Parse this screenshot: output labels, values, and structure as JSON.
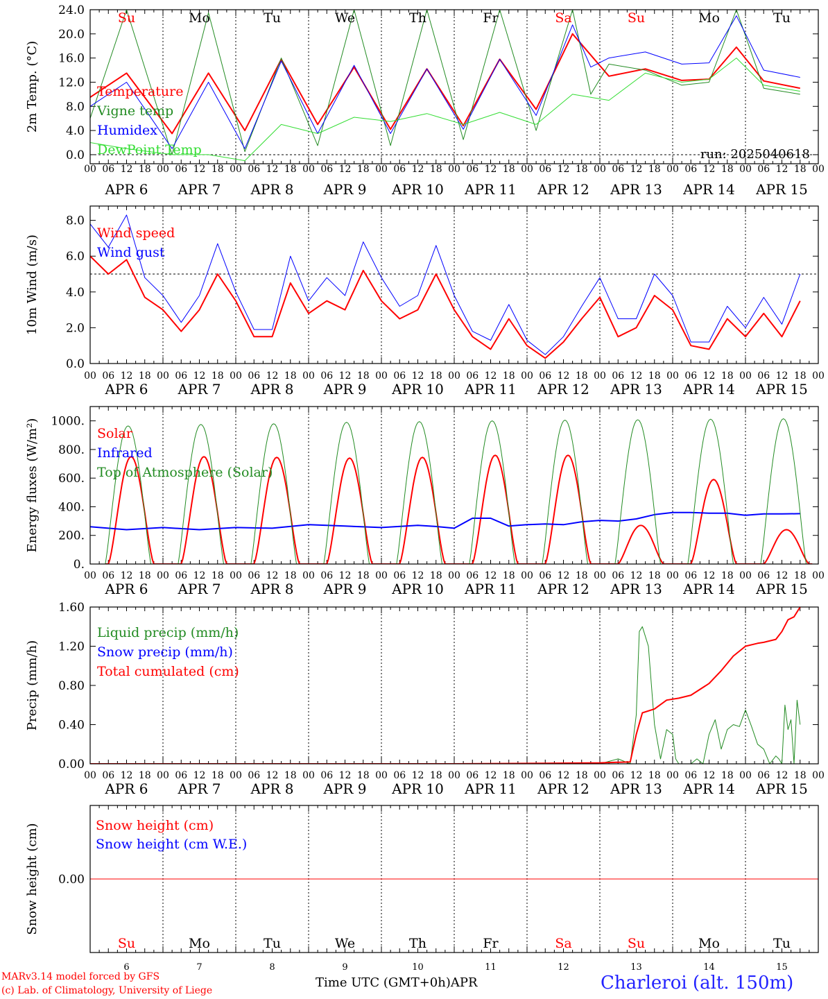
{
  "chart_data": {
    "type": "line",
    "days": [
      {
        "date": "APR 6",
        "dow": "Su",
        "weekend": true,
        "num": "6"
      },
      {
        "date": "APR 7",
        "dow": "Mo",
        "weekend": false,
        "num": "7"
      },
      {
        "date": "APR 8",
        "dow": "Tu",
        "weekend": false,
        "num": "8"
      },
      {
        "date": "APR 9",
        "dow": "We",
        "weekend": false,
        "num": "9"
      },
      {
        "date": "APR 10",
        "dow": "Th",
        "weekend": false,
        "num": "10"
      },
      {
        "date": "APR 11",
        "dow": "Fr",
        "weekend": false,
        "num": "11"
      },
      {
        "date": "APR 12",
        "dow": "Sa",
        "weekend": true,
        "num": "12"
      },
      {
        "date": "APR 13",
        "dow": "Su",
        "weekend": true,
        "num": "13"
      },
      {
        "date": "APR 14",
        "dow": "Mo",
        "weekend": false,
        "num": "14"
      },
      {
        "date": "APR 15",
        "dow": "Tu",
        "weekend": false,
        "num": "15"
      }
    ],
    "hour_labels": [
      "00",
      "06",
      "12",
      "18"
    ],
    "final_hour_label": "00",
    "panels": [
      {
        "id": "temp",
        "ylabel": "2m Temp. (°C)",
        "ylim": [
          -1.5,
          24
        ],
        "yticks": [
          "0.0",
          "4.0",
          "8.0",
          "12.0",
          "16.0",
          "20.0",
          "24.0"
        ],
        "ytick_values": [
          0,
          4,
          8,
          12,
          16,
          20,
          24
        ],
        "ref_line": 0,
        "annotation": "run: 2025040618",
        "series": [
          {
            "name": "Temperature",
            "color": "#ff0000",
            "width": 2,
            "x": [
              0,
              12,
              27,
              39,
              51,
              63,
              75,
              87,
              99,
              111,
              123,
              135,
              147,
              159,
              171,
              183,
              195,
              204,
              213,
              222,
              234
            ],
            "y": [
              9.5,
              13.5,
              3.5,
              13.5,
              4.0,
              15.8,
              5.0,
              14.5,
              4.2,
              14.2,
              4.8,
              15.8,
              7.5,
              20.0,
              13.0,
              14.2,
              12.3,
              12.5,
              17.8,
              12.2,
              11.0
            ]
          },
          {
            "name": "Vigne temp",
            "color": "#228b22",
            "width": 1,
            "x": [
              0,
              12,
              27,
              39,
              51,
              63,
              75,
              87,
              99,
              111,
              123,
              135,
              147,
              159,
              165,
              171,
              183,
              195,
              204,
              213,
              222,
              234
            ],
            "y": [
              6.0,
              24.0,
              0.0,
              23.5,
              0.5,
              16.0,
              1.5,
              24.0,
              1.5,
              24.0,
              2.5,
              24.0,
              4.0,
              24.0,
              10.0,
              15.0,
              14.0,
              11.5,
              12.0,
              24.0,
              11.0,
              10.0
            ]
          },
          {
            "name": "Humidex",
            "color": "#0000ff",
            "width": 1,
            "x": [
              0,
              12,
              27,
              39,
              51,
              63,
              75,
              87,
              99,
              111,
              123,
              135,
              147,
              159,
              165,
              171,
              183,
              195,
              204,
              213,
              222,
              234
            ],
            "y": [
              8.0,
              12.0,
              1.0,
              12.0,
              1.0,
              15.5,
              3.5,
              14.8,
              3.5,
              14.2,
              4.2,
              15.8,
              6.5,
              21.5,
              14.5,
              16.0,
              17.0,
              15.0,
              15.2,
              23.0,
              14.0,
              12.8
            ]
          },
          {
            "name": "DewPoint Temp",
            "color": "#33dd33",
            "width": 1,
            "x": [
              0,
              12,
              27,
              39,
              51,
              63,
              75,
              87,
              99,
              111,
              123,
              135,
              147,
              159,
              171,
              183,
              195,
              204,
              213,
              222,
              234
            ],
            "y": [
              2.0,
              1.0,
              0.0,
              0.0,
              -1.0,
              5.0,
              3.5,
              6.2,
              5.5,
              6.8,
              5.0,
              7.0,
              5.0,
              10.0,
              9.0,
              13.5,
              12.0,
              12.5,
              16.0,
              11.5,
              10.5
            ]
          }
        ]
      },
      {
        "id": "wind",
        "ylabel": "10m Wind (m/s)",
        "ylim": [
          0,
          8.8
        ],
        "yticks": [
          "0.0",
          "2.0",
          "4.0",
          "6.0",
          "8.0"
        ],
        "ytick_values": [
          0,
          2,
          4,
          6,
          8
        ],
        "ref_line": 5,
        "series": [
          {
            "name": "Wind speed",
            "color": "#ff0000",
            "width": 2,
            "x": [
              0,
              6,
              12,
              18,
              24,
              30,
              36,
              42,
              48,
              54,
              60,
              66,
              72,
              78,
              84,
              90,
              96,
              102,
              108,
              114,
              120,
              126,
              132,
              138,
              144,
              150,
              156,
              162,
              168,
              174,
              180,
              186,
              192,
              198,
              204,
              210,
              216,
              222,
              228,
              234
            ],
            "y": [
              6.0,
              5.0,
              5.8,
              3.7,
              3.0,
              1.8,
              3.0,
              5.0,
              3.5,
              1.5,
              1.5,
              4.5,
              2.8,
              3.5,
              3.0,
              5.2,
              3.5,
              2.5,
              3.0,
              5.0,
              3.0,
              1.5,
              0.8,
              2.5,
              1.0,
              0.3,
              1.2,
              2.5,
              3.7,
              1.5,
              2.0,
              3.8,
              3.0,
              1.0,
              0.8,
              2.5,
              1.5,
              2.8,
              1.5,
              3.5
            ]
          },
          {
            "name": "Wind gust",
            "color": "#0000ff",
            "width": 1,
            "x": [
              0,
              6,
              12,
              18,
              24,
              30,
              36,
              42,
              48,
              54,
              60,
              66,
              72,
              78,
              84,
              90,
              96,
              102,
              108,
              114,
              120,
              126,
              132,
              138,
              144,
              150,
              156,
              162,
              168,
              174,
              180,
              186,
              192,
              198,
              204,
              210,
              216,
              222,
              228,
              234
            ],
            "y": [
              7.8,
              6.5,
              8.3,
              4.8,
              3.8,
              2.3,
              3.8,
              6.7,
              4.0,
              1.9,
              1.9,
              6.0,
              3.5,
              4.8,
              3.8,
              6.8,
              4.8,
              3.2,
              3.8,
              6.6,
              3.8,
              1.8,
              1.3,
              3.3,
              1.3,
              0.5,
              1.5,
              3.2,
              4.8,
              2.5,
              2.5,
              5.0,
              3.8,
              1.2,
              1.2,
              3.2,
              2.0,
              3.7,
              2.2,
              5.0
            ]
          }
        ]
      },
      {
        "id": "energy",
        "ylabel": "Energy fluxes (W/m²)",
        "ylim": [
          0,
          1100
        ],
        "yticks": [
          "0.",
          "200.",
          "400.",
          "600.",
          "800.",
          "1000."
        ],
        "ytick_values": [
          0,
          200,
          400,
          600,
          800,
          1000
        ],
        "ref_line": null,
        "solar_peaks": [
          750,
          750,
          745,
          740,
          745,
          760,
          760,
          270,
          590,
          240
        ],
        "series": [
          {
            "name": "Solar",
            "color": "#ff0000",
            "width": 2
          },
          {
            "name": "Infrared",
            "color": "#0000ff",
            "width": 2,
            "x": [
              0,
              12,
              24,
              36,
              48,
              60,
              72,
              84,
              96,
              108,
              114,
              120,
              126,
              132,
              138,
              144,
              150,
              156,
              162,
              168,
              174,
              180,
              186,
              192,
              198,
              204,
              210,
              216,
              222,
              228,
              234
            ],
            "y": [
              260,
              240,
              255,
              240,
              255,
              250,
              275,
              265,
              255,
              270,
              262,
              250,
              320,
              320,
              265,
              275,
              280,
              275,
              295,
              305,
              300,
              315,
              345,
              360,
              360,
              355,
              355,
              340,
              350,
              350,
              352
            ]
          },
          {
            "name": "Top of Atmosphere (Solar)",
            "color": "#228b22",
            "width": 1,
            "peaks": [
              965,
              975,
              980,
              990,
              995,
              1000,
              1005,
              1008,
              1012,
              1015
            ]
          }
        ]
      },
      {
        "id": "precip",
        "ylabel": "Precip (mm/h)",
        "ylim": [
          0,
          1.6
        ],
        "yticks": [
          "0.00",
          "0.40",
          "0.80",
          "1.20",
          "1.60"
        ],
        "ytick_values": [
          0,
          0.4,
          0.8,
          1.2,
          1.6
        ],
        "ref_line": null,
        "series": [
          {
            "name": "Liquid precip (mm/h)",
            "color": "#228b22",
            "width": 1,
            "x": [
              0,
              120,
              168,
              174,
              178,
              180,
              181,
              182,
              184,
              186,
              188,
              190,
              192,
              193,
              194,
              196,
              198,
              200,
              202,
              204,
              206,
              208,
              210,
              212,
              214,
              216,
              218,
              220,
              222,
              224,
              226,
              227,
              228,
              229,
              230,
              231,
              232,
              233,
              234
            ],
            "y": [
              0,
              0,
              0,
              0.05,
              0,
              0.5,
              1.35,
              1.4,
              1.2,
              0.4,
              0.05,
              0.35,
              0.3,
              0.05,
              0,
              0,
              0,
              0.05,
              0,
              0.3,
              0.45,
              0.15,
              0.35,
              0.4,
              0.38,
              0.55,
              0.38,
              0.2,
              0.15,
              0.0,
              0.08,
              0.05,
              0.0,
              0.6,
              0.35,
              0.45,
              0.0,
              0.65,
              0.4
            ]
          },
          {
            "name": "Snow precip (mm/h)",
            "color": "#0000ff",
            "width": 1,
            "x": [
              0,
              234
            ],
            "y": [
              0,
              0
            ]
          },
          {
            "name": "Total cumulated (cm)",
            "color": "#ff0000",
            "width": 2,
            "x": [
              0,
              120,
              150,
              168,
              178,
              180,
              182,
              186,
              190,
              194,
              198,
              204,
              208,
              212,
              216,
              220,
              222,
              226,
              228,
              230,
              232,
              234
            ],
            "y": [
              0,
              0,
              0.005,
              0.01,
              0.02,
              0.3,
              0.52,
              0.56,
              0.65,
              0.67,
              0.7,
              0.82,
              0.95,
              1.1,
              1.2,
              1.23,
              1.24,
              1.27,
              1.35,
              1.47,
              1.5,
              1.6
            ]
          }
        ]
      },
      {
        "id": "snow",
        "ylabel": "Snow height (cm)",
        "ylim": [
          -0.5,
          0.5
        ],
        "yticks": [
          "0.00"
        ],
        "ytick_values": [
          0
        ],
        "ref_line": null,
        "series": [
          {
            "name": "Snow height (cm)",
            "color": "#ff0000",
            "width": 1,
            "x": [
              0,
              240
            ],
            "y": [
              0,
              0
            ]
          },
          {
            "name": "Snow height (cm W.E.)",
            "color": "#0000ff",
            "width": 1
          }
        ]
      }
    ],
    "x_axis_title": "Time UTC (GMT+0h)",
    "x_axis_month": "APR"
  },
  "footer": {
    "credit_line1": "MARv3.14 model forced by GFS",
    "credit_line2": "(c) Lab. of Climatology, University of Liege",
    "x_axis_title": "Time UTC (GMT+0h)APR",
    "station": "Charleroi (alt. 150m)"
  },
  "colors": {
    "weekend_day": "#ff0000",
    "weekday": "#000000",
    "station": "#2222ff"
  }
}
